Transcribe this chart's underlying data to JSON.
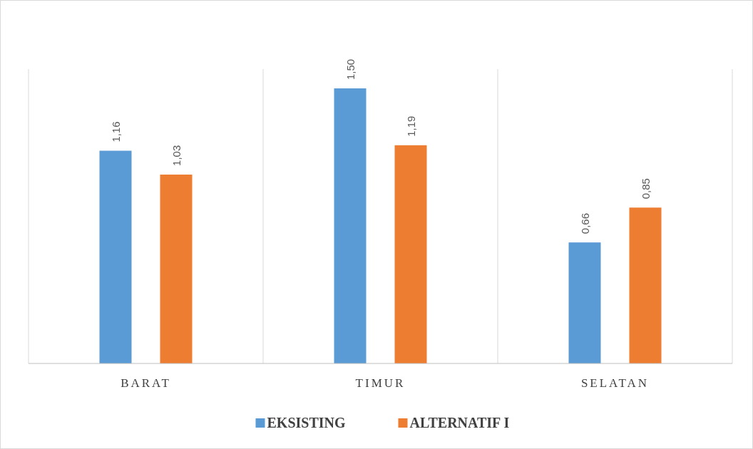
{
  "chart_data": {
    "type": "bar",
    "categories": [
      "BARAT",
      "TIMUR",
      "SELATAN"
    ],
    "series": [
      {
        "name": "EKSISTING",
        "color": "#5b9bd5",
        "values": [
          1.16,
          1.5,
          0.66
        ],
        "value_labels": [
          "1,16",
          "1,50",
          "0,66"
        ]
      },
      {
        "name": "ALTERNATIF I",
        "color": "#ed7d31",
        "values": [
          1.03,
          1.19,
          0.85
        ],
        "value_labels": [
          "1,03",
          "1,19",
          "0,85"
        ]
      }
    ],
    "grid": "x",
    "legend": "bottom"
  }
}
